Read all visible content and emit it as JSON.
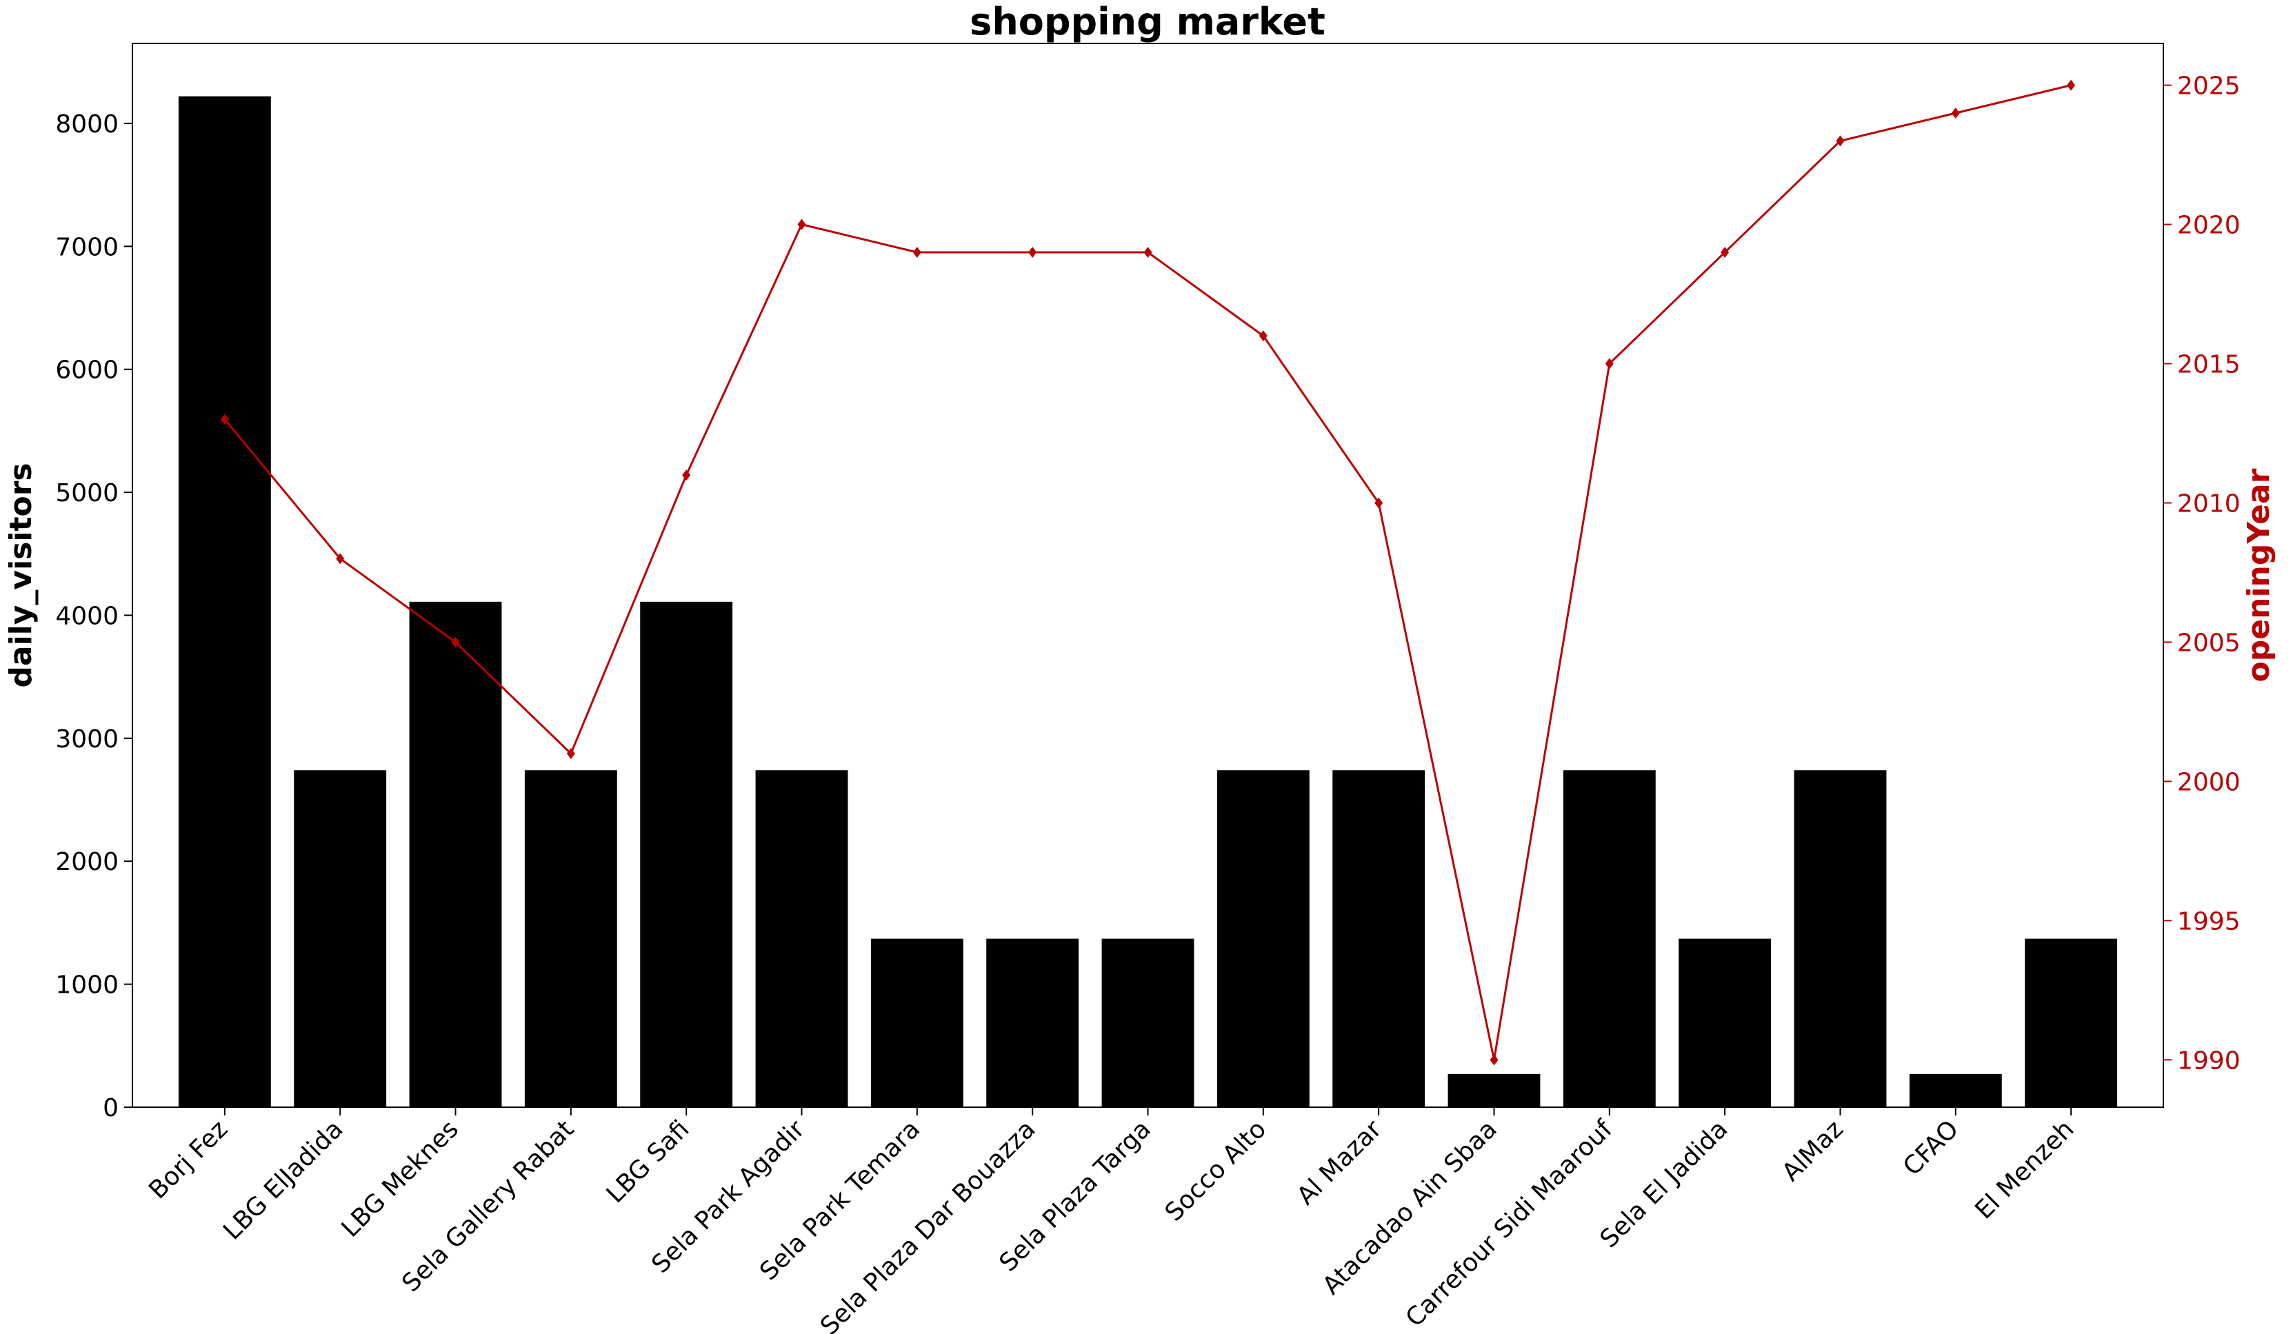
{
  "chart_data": {
    "type": "bar",
    "title": "shopping market",
    "categories": [
      "Borj Fez",
      "LBG ElJadida",
      "LBG Meknes",
      "Sela Gallery Rabat",
      "LBG Safi",
      "Sela Park Agadir",
      "Sela Park Temara",
      "Sela Plaza Dar Bouazza",
      "Sela Plaza Targa",
      "Socco Alto",
      "Al Mazar",
      "Atacadao Ain Sbaa",
      "Carrefour Sidi Maarouf",
      "Sela El Jadida",
      "AlMaz",
      "CFAO",
      "El Menzeh"
    ],
    "series": [
      {
        "type": "bar",
        "axis": "left",
        "color": "#000000",
        "values": [
          8220,
          2740,
          4110,
          2740,
          4110,
          2740,
          1370,
          1370,
          1370,
          2740,
          2740,
          270,
          2740,
          1370,
          2740,
          270,
          1370
        ]
      },
      {
        "type": "line",
        "axis": "right",
        "color": "#bb0000",
        "marker": "diamond",
        "values": [
          2013,
          2008,
          2005,
          2001,
          2011,
          2020,
          2019,
          2019,
          2019,
          2016,
          2010,
          1990,
          2015,
          2019,
          2023,
          2024,
          2025
        ]
      }
    ],
    "ylabel_left": "daily_visitors",
    "ylabel_right": "openingYear",
    "ylim_left": [
      0,
      8650
    ],
    "yticks_left": [
      0,
      1000,
      2000,
      3000,
      4000,
      5000,
      6000,
      7000,
      8000
    ],
    "ylim_right": [
      1988.3,
      2026.5
    ],
    "yticks_right": [
      1990,
      1995,
      2000,
      2005,
      2010,
      2015,
      2020,
      2025
    ],
    "right_axis_color": "#bb0000",
    "grid": false,
    "legend": "none"
  }
}
